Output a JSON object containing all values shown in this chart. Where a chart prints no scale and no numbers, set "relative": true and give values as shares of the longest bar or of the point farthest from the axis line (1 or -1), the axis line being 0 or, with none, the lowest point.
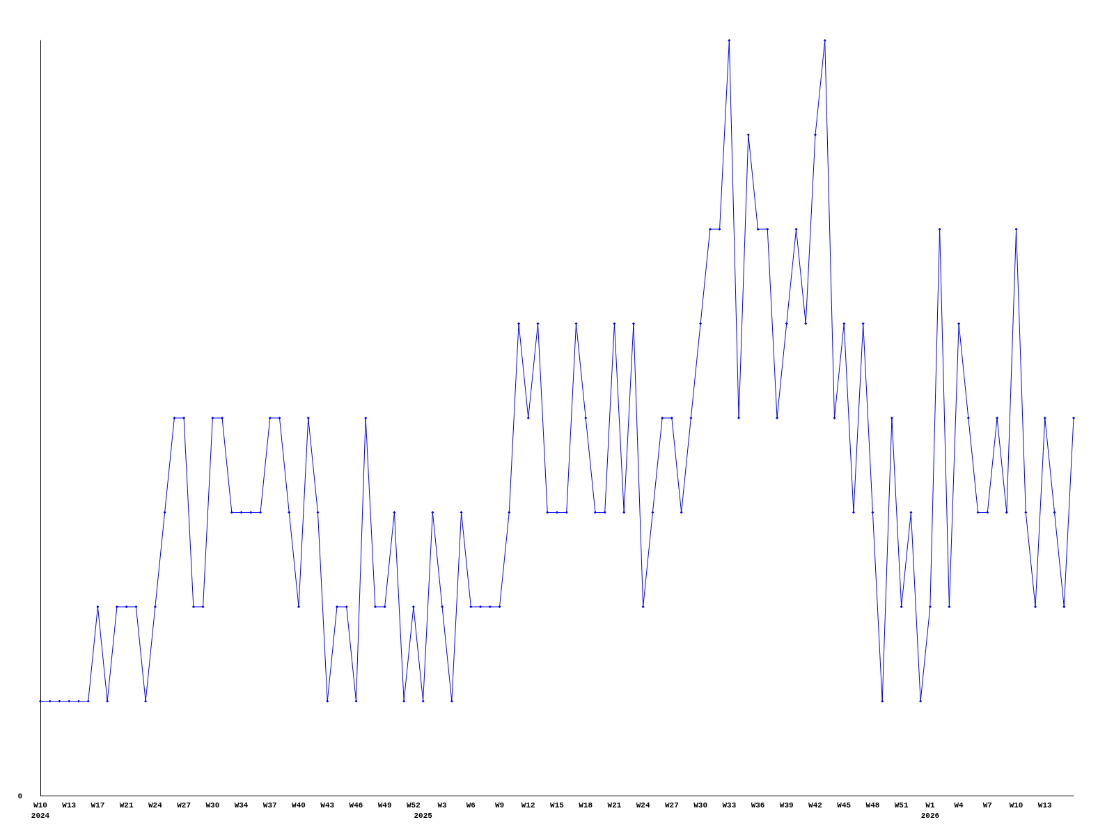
{
  "chart_data": {
    "type": "line",
    "relative": true,
    "marker": "diamond",
    "grid": false,
    "annotations": [
      "0"
    ],
    "categories": [
      "W10\n2024",
      null,
      null,
      "W13",
      null,
      null,
      "W17",
      null,
      null,
      "W21",
      null,
      null,
      "W24",
      null,
      null,
      "W27",
      null,
      null,
      "W30",
      null,
      null,
      "W34",
      null,
      null,
      "W37",
      null,
      null,
      "W40",
      null,
      null,
      "W43",
      null,
      null,
      "W46",
      null,
      null,
      "W49",
      null,
      null,
      "W52",
      "\n2025",
      null,
      "W3",
      null,
      null,
      "W6",
      null,
      null,
      "W9",
      null,
      null,
      "W12",
      null,
      null,
      "W15",
      null,
      null,
      "W18",
      null,
      null,
      "W21",
      null,
      null,
      "W24",
      null,
      null,
      "W27",
      null,
      null,
      "W30",
      null,
      null,
      "W33",
      null,
      null,
      "W36",
      null,
      null,
      "W39",
      null,
      null,
      "W42",
      null,
      null,
      "W45",
      null,
      null,
      "W48",
      null,
      null,
      "W51",
      null,
      null,
      "W1\n2026",
      null,
      null,
      "W4",
      null,
      null,
      "W7",
      null,
      null,
      "W10",
      null,
      null,
      "W13",
      null,
      null,
      null
    ],
    "series": [
      {
        "color": "#0000ff",
        "values": [
          0.125,
          0.125,
          0.125,
          0.125,
          0.125,
          0.125,
          0.25,
          0.125,
          0.25,
          0.25,
          0.25,
          0.125,
          0.25,
          0.375,
          0.5,
          0.5,
          0.25,
          0.25,
          0.5,
          0.5,
          0.375,
          0.375,
          0.375,
          0.375,
          0.5,
          0.5,
          0.375,
          0.25,
          0.5,
          0.375,
          0.125,
          0.25,
          0.25,
          0.125,
          0.5,
          0.25,
          0.25,
          0.375,
          0.125,
          0.25,
          0.125,
          0.375,
          0.25,
          0.125,
          0.375,
          0.25,
          0.25,
          0.25,
          0.25,
          0.375,
          0.625,
          0.5,
          0.625,
          0.375,
          0.375,
          0.375,
          0.625,
          0.5,
          0.375,
          0.375,
          0.625,
          0.375,
          0.625,
          0.25,
          0.375,
          0.5,
          0.5,
          0.375,
          0.5,
          0.625,
          0.75,
          0.75,
          1,
          0.5,
          0.875,
          0.75,
          0.75,
          0.5,
          0.625,
          0.75,
          0.625,
          0.875,
          1,
          0.5,
          0.625,
          0.375,
          0.625,
          0.375,
          0.125,
          0.5,
          0.25,
          0.375,
          0.125,
          0.25,
          0.75,
          0.25,
          0.625,
          0.5,
          0.375,
          0.375,
          0.5,
          0.375,
          0.75,
          0.375,
          0.25,
          0.5,
          0.375,
          0.25,
          0.5
        ]
      }
    ]
  }
}
